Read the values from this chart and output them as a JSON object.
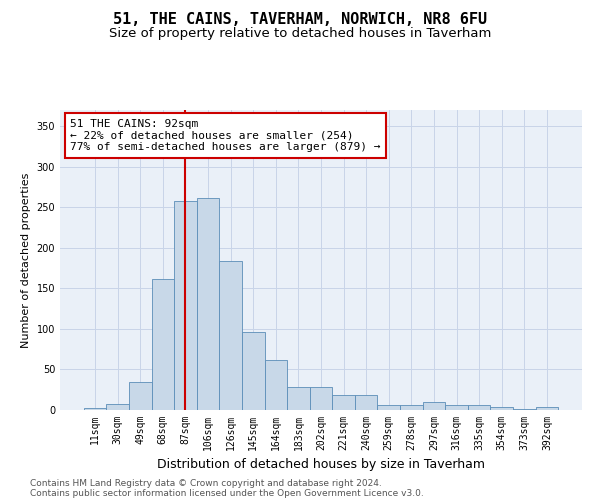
{
  "title": "51, THE CAINS, TAVERHAM, NORWICH, NR8 6FU",
  "subtitle": "Size of property relative to detached houses in Taverham",
  "xlabel": "Distribution of detached houses by size in Taverham",
  "ylabel": "Number of detached properties",
  "categories": [
    "11sqm",
    "30sqm",
    "49sqm",
    "68sqm",
    "87sqm",
    "106sqm",
    "126sqm",
    "145sqm",
    "164sqm",
    "183sqm",
    "202sqm",
    "221sqm",
    "240sqm",
    "259sqm",
    "278sqm",
    "297sqm",
    "316sqm",
    "335sqm",
    "354sqm",
    "373sqm",
    "392sqm"
  ],
  "values": [
    2,
    8,
    35,
    162,
    258,
    262,
    184,
    96,
    62,
    28,
    28,
    19,
    19,
    6,
    6,
    10,
    6,
    6,
    4,
    1,
    4
  ],
  "bar_color": "#c8d8e8",
  "bar_edge_color": "#5b8db8",
  "vline_x_index": 4,
  "vline_color": "#cc0000",
  "annotation_line1": "51 THE CAINS: 92sqm",
  "annotation_line2": "← 22% of detached houses are smaller (254)",
  "annotation_line3": "77% of semi-detached houses are larger (879) →",
  "annotation_box_color": "#ffffff",
  "annotation_box_edge": "#cc0000",
  "ylim": [
    0,
    370
  ],
  "yticks": [
    0,
    50,
    100,
    150,
    200,
    250,
    300,
    350
  ],
  "grid_color": "#c8d4e8",
  "bg_color": "#eaf0f8",
  "footer1": "Contains HM Land Registry data © Crown copyright and database right 2024.",
  "footer2": "Contains public sector information licensed under the Open Government Licence v3.0.",
  "title_fontsize": 11,
  "subtitle_fontsize": 9.5,
  "xlabel_fontsize": 9,
  "ylabel_fontsize": 8,
  "tick_fontsize": 7,
  "annotation_fontsize": 8,
  "footer_fontsize": 6.5
}
